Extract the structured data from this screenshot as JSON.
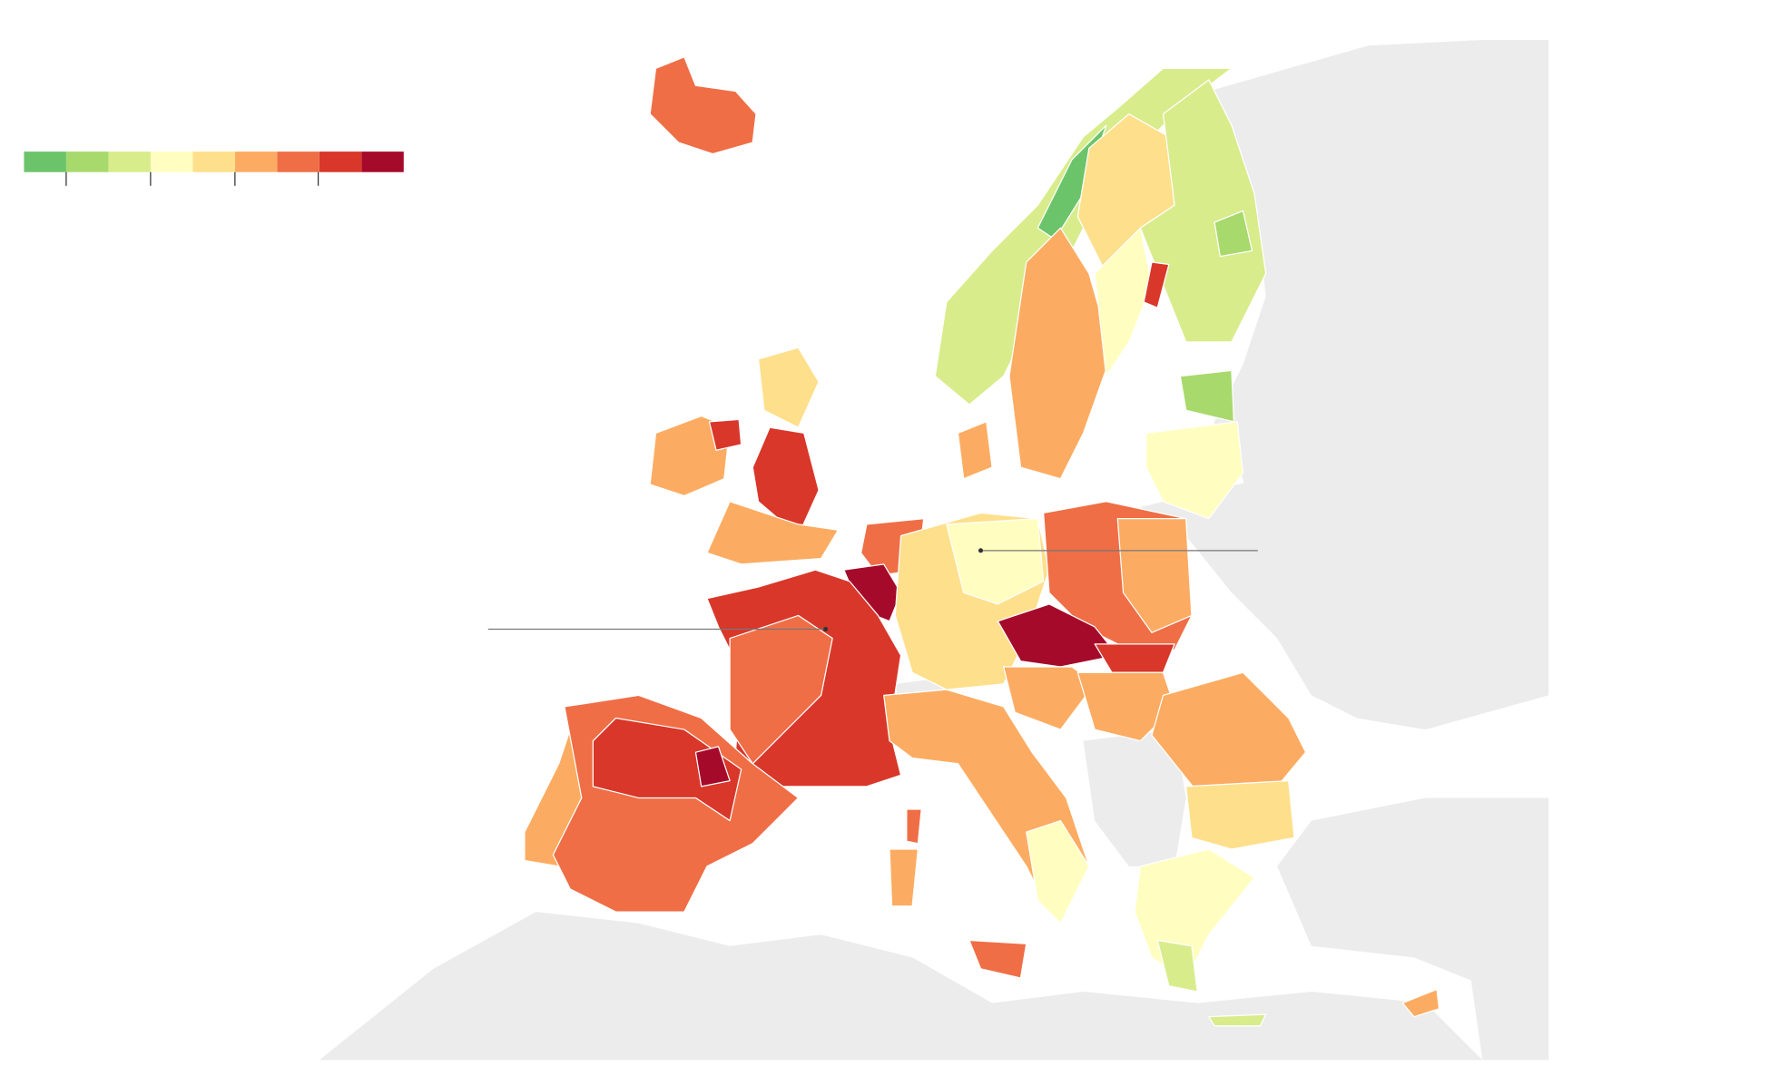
{
  "legend": {
    "colors": [
      "#6cc46a",
      "#a8d96c",
      "#d8ec8c",
      "#fffec0",
      "#fedf8b",
      "#fcac62",
      "#ef6e46",
      "#d8372a",
      "#a60a2a"
    ]
  }
}
